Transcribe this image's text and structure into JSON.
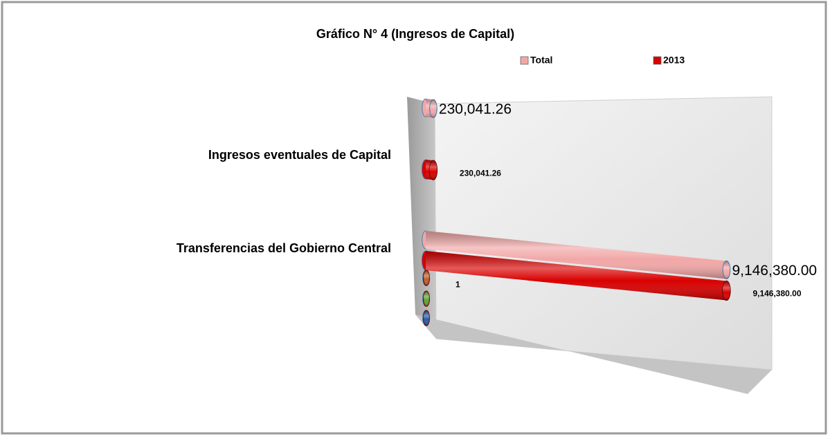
{
  "chart_data": {
    "type": "bar3d-horizontal",
    "title": "Gráfico N° 4 (Ingresos de Capital)",
    "categories": [
      "Ingresos eventuales de Capital",
      "Transferencias del Gobierno Central"
    ],
    "series": [
      {
        "name": "Total",
        "color": "#f2a7a7",
        "values": [
          230041.26,
          9146380.0
        ],
        "value_labels": [
          "230,041.26",
          "9,146,380.00"
        ]
      },
      {
        "name": "2013",
        "color": "#d90000",
        "values": [
          230041.26,
          9146380.0
        ],
        "value_labels": [
          "230,041.26",
          "9,146,380.00"
        ]
      },
      {
        "color": "#c0602a",
        "values": [
          null,
          1
        ],
        "labels": false
      },
      {
        "color": "#5aa832",
        "values": [
          null,
          1
        ],
        "labels": false
      },
      {
        "color": "#1f5fb0",
        "values": [
          null,
          1
        ],
        "labels": true
      }
    ],
    "xlim": [
      0,
      10000000
    ],
    "legend": "top"
  }
}
